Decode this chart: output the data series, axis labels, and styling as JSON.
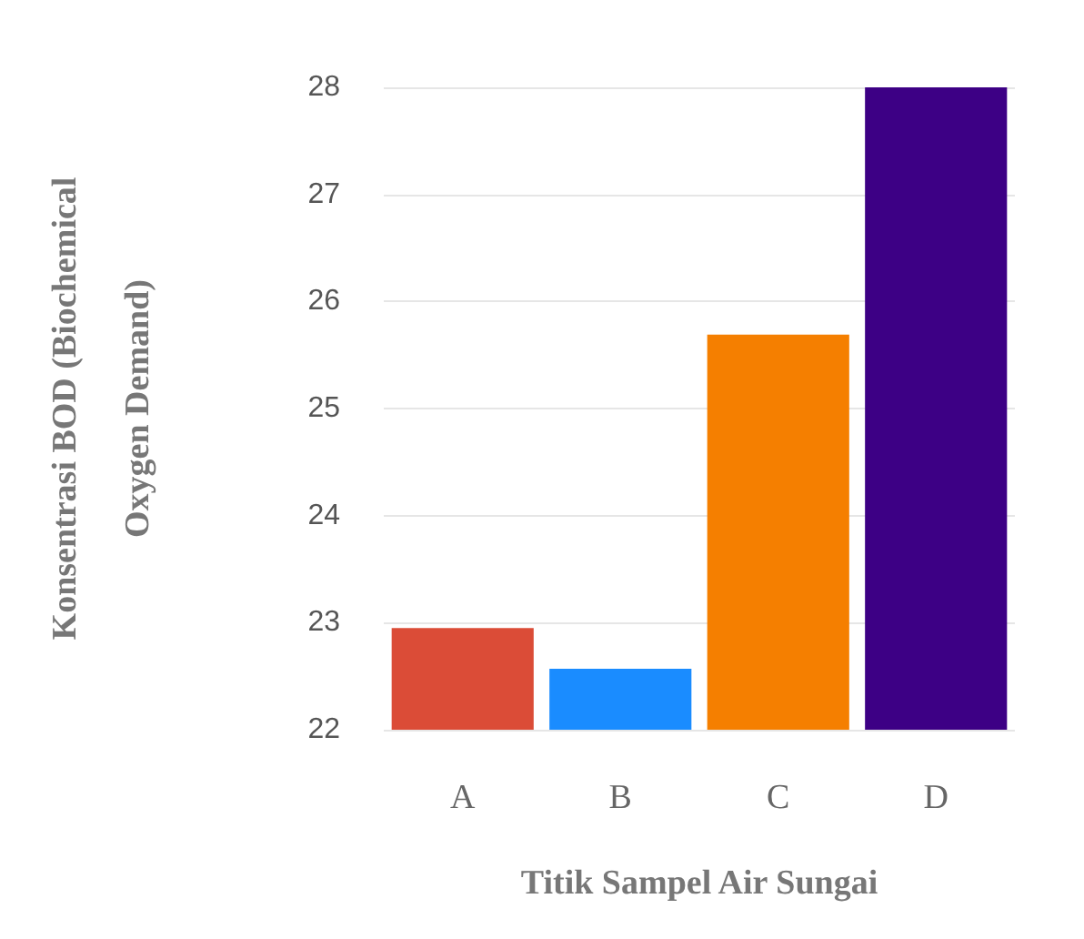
{
  "chart_data": {
    "type": "bar",
    "xlabel": "Titik Sampel Air Sungai",
    "ylabel": "Konsentrasi BOD (Biochemical\nOxygen Demand)",
    "categories": [
      "A",
      "B",
      "C",
      "D"
    ],
    "values": [
      22.95,
      22.57,
      25.69,
      28
    ],
    "colors": [
      "#db4c37",
      "#1a8cff",
      "#f57f00",
      "#3d0085"
    ],
    "ylim": [
      22,
      28
    ],
    "yticks": [
      22,
      23,
      24,
      25,
      26,
      27,
      28
    ],
    "grid": "y"
  }
}
